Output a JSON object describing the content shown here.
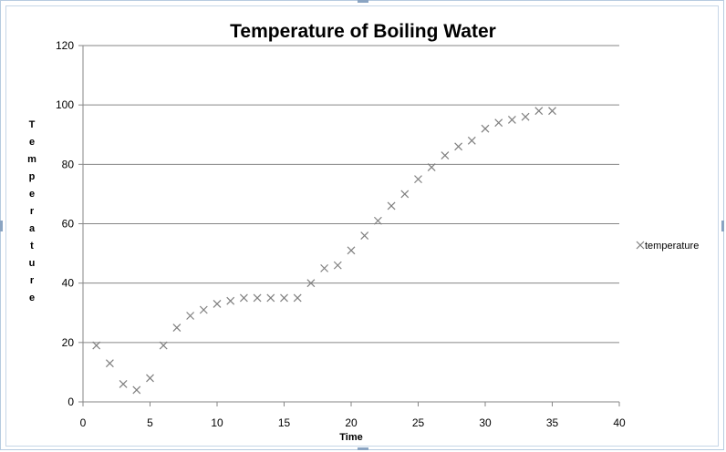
{
  "chart_data": {
    "type": "scatter",
    "title": "Temperature of Boiling Water",
    "xlabel": "Time",
    "ylabel": "Temperature",
    "xlim": [
      0,
      40
    ],
    "ylim": [
      0,
      120
    ],
    "xticks": [
      0,
      5,
      10,
      15,
      20,
      25,
      30,
      35,
      40
    ],
    "yticks": [
      0,
      20,
      40,
      60,
      80,
      100,
      120
    ],
    "grid": "horizontal",
    "legend_position": "right",
    "marker": "x",
    "marker_color": "#7f7f7f",
    "series": [
      {
        "name": "temperature",
        "x": [
          1,
          2,
          3,
          4,
          5,
          6,
          7,
          8,
          9,
          10,
          11,
          12,
          13,
          14,
          15,
          16,
          17,
          18,
          19,
          20,
          21,
          22,
          23,
          24,
          25,
          26,
          27,
          28,
          29,
          30,
          31,
          32,
          33,
          34,
          35
        ],
        "y": [
          19,
          13,
          6,
          4,
          8,
          19,
          25,
          29,
          31,
          33,
          34,
          35,
          35,
          35,
          35,
          35,
          40,
          45,
          46,
          51,
          56,
          61,
          66,
          70,
          75,
          79,
          83,
          86,
          88,
          92,
          94,
          95,
          96,
          98,
          98
        ]
      }
    ]
  }
}
